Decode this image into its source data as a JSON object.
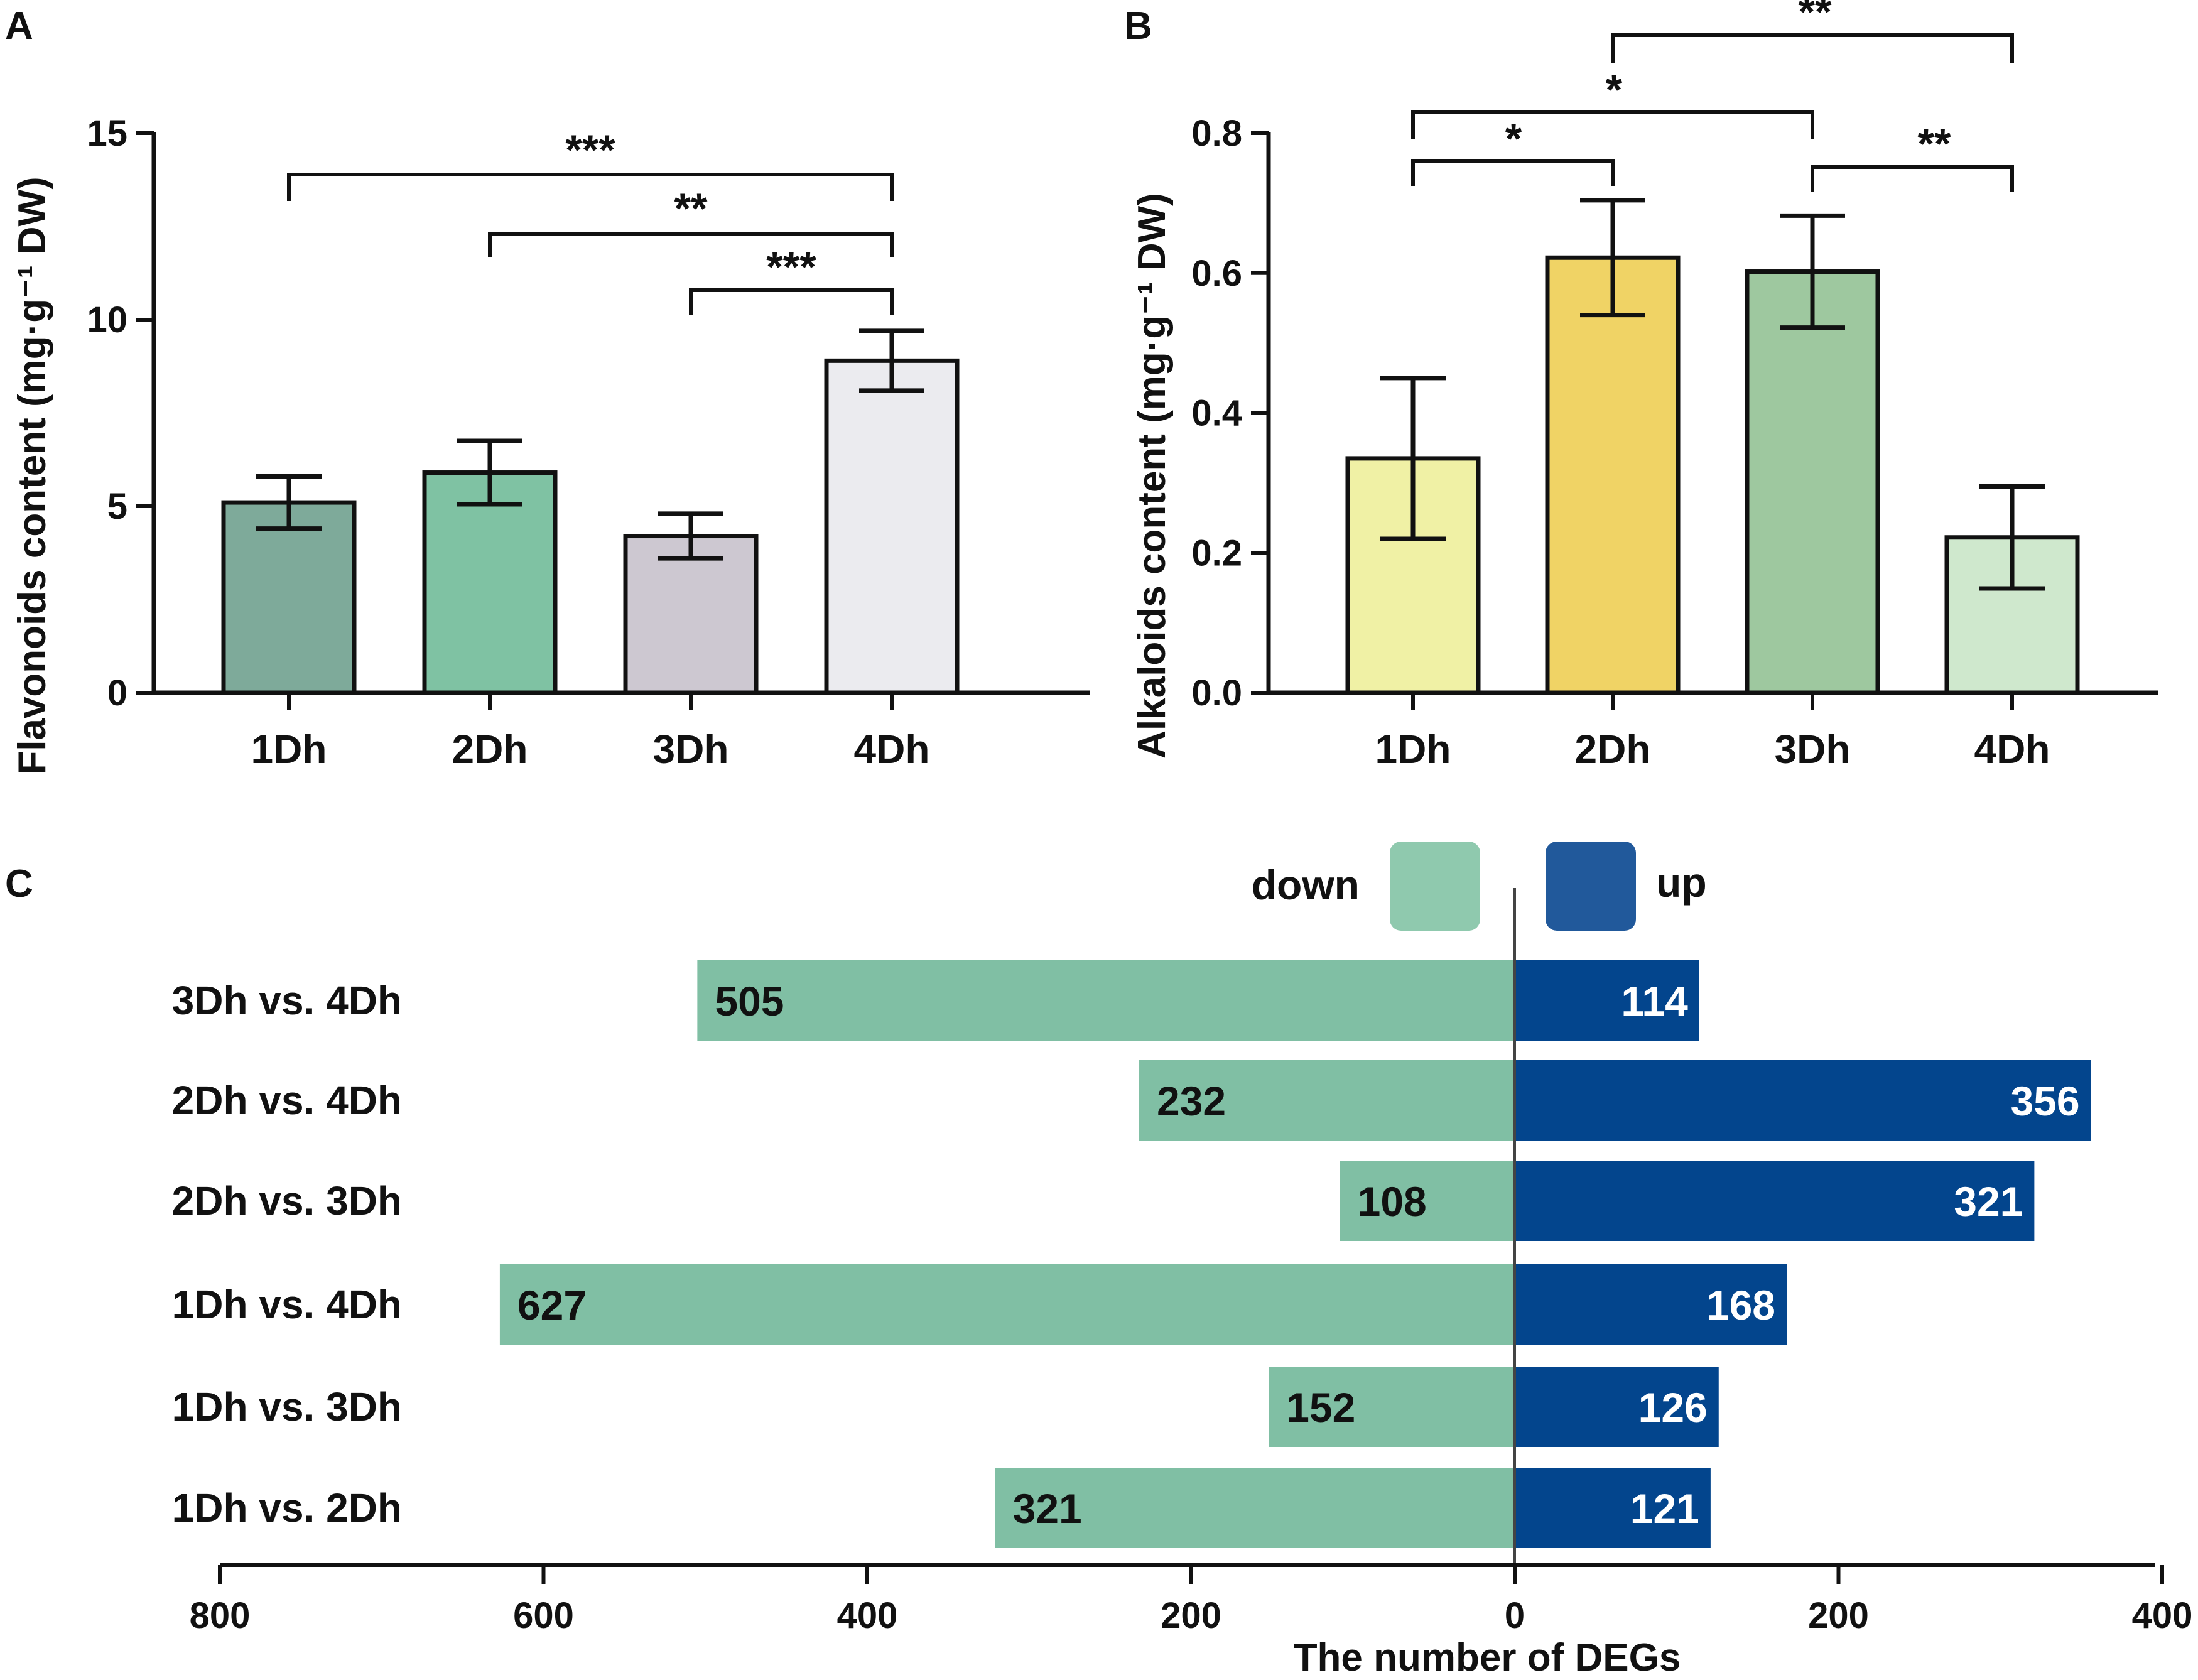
{
  "chart_data": [
    {
      "panel": "A",
      "type": "bar",
      "categories": [
        "1Dh",
        "2Dh",
        "3Dh",
        "4Dh"
      ],
      "values": [
        5.1,
        5.9,
        4.2,
        8.9
      ],
      "errors": [
        0.7,
        0.85,
        0.6,
        0.8
      ],
      "colors": [
        "#7eaa9a",
        "#7fc2a3",
        "#cdc8d1",
        "#ebebef"
      ],
      "ylabel": "Flavonoids content (mg·g⁻¹ DW)",
      "ylim": [
        0,
        15
      ],
      "yticks": [
        "0",
        "5",
        "10",
        "15"
      ],
      "significance": [
        {
          "from": 0,
          "to": 3,
          "label": "***"
        },
        {
          "from": 1,
          "to": 3,
          "label": "**"
        },
        {
          "from": 2,
          "to": 3,
          "label": "***"
        }
      ]
    },
    {
      "panel": "B",
      "type": "bar",
      "categories": [
        "1Dh",
        "2Dh",
        "3Dh",
        "4Dh"
      ],
      "values": [
        0.335,
        0.622,
        0.602,
        0.222
      ],
      "errors": [
        0.115,
        0.082,
        0.08,
        0.073
      ],
      "colors": [
        "#f0f1a5",
        "#f0d365",
        "#9ec89f",
        "#cfe8cd"
      ],
      "ylabel": "Alkaloids content (mg·g⁻¹ DW)",
      "ylim": [
        0,
        0.8
      ],
      "yticks": [
        "0.0",
        "0.2",
        "0.4",
        "0.6",
        "0.8"
      ],
      "significance": [
        {
          "from": 1,
          "to": 3,
          "label": "**"
        },
        {
          "from": 0,
          "to": 2,
          "label": "*"
        },
        {
          "from": 0,
          "to": 1,
          "label": "*"
        },
        {
          "from": 2,
          "to": 3,
          "label": "**"
        }
      ]
    },
    {
      "panel": "C",
      "type": "bar",
      "orientation": "horizontal-diverging",
      "categories": [
        "3Dh vs. 4Dh",
        "2Dh vs. 4Dh",
        "2Dh vs. 3Dh",
        "1Dh vs. 4Dh",
        "1Dh vs. 3Dh",
        "1Dh vs. 2Dh"
      ],
      "series": [
        {
          "name": "down",
          "values": [
            505,
            232,
            108,
            627,
            152,
            321
          ],
          "color": "#80bfa4"
        },
        {
          "name": "up",
          "values": [
            114,
            356,
            321,
            168,
            126,
            121
          ],
          "color": "#03458d"
        }
      ],
      "legend": {
        "down": "down",
        "up": "up",
        "down_swatch": "#8fc9ae",
        "up_swatch": "#21599b"
      },
      "xlabel": "The number of DEGs",
      "xlim": [
        -800,
        400
      ],
      "xticks": [
        "800",
        "600",
        "400",
        "200",
        "0",
        "200",
        "400"
      ]
    }
  ]
}
